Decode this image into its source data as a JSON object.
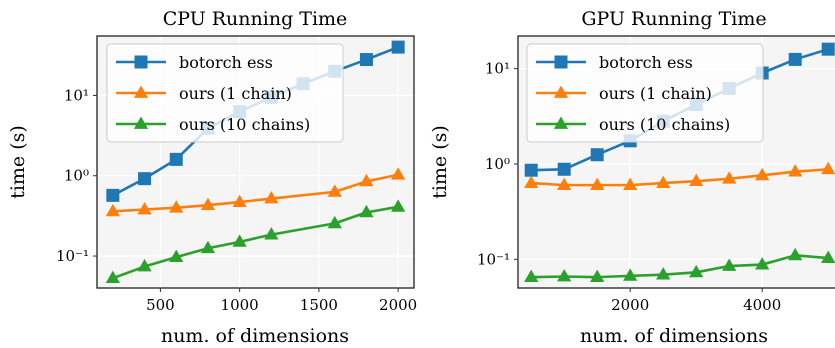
{
  "chart_data": [
    {
      "type": "line",
      "title": "CPU Running Time",
      "xlabel": "num. of dimensions",
      "ylabel": "time (s)",
      "yscale": "log",
      "xlim": [
        100,
        2100
      ],
      "ylim": [
        0.04,
        55
      ],
      "xticks": [
        500,
        1000,
        1500,
        2000
      ],
      "xtick_labels": [
        "500",
        "1000",
        "1500",
        "2000"
      ],
      "yticks": [
        0.1,
        1,
        10
      ],
      "ytick_labels": [
        "10⁻¹",
        "10⁰",
        "10¹"
      ],
      "grid": true,
      "legend_position": "upper-left",
      "series": [
        {
          "name": "botorch ess",
          "color": "#1f77b4",
          "marker": "square",
          "x": [
            200,
            400,
            600,
            800,
            1000,
            1200,
            1400,
            1600,
            1800,
            2000
          ],
          "y": [
            0.57,
            0.92,
            1.6,
            3.9,
            6.3,
            9.5,
            14,
            20,
            28,
            40
          ]
        },
        {
          "name": "ours (1 chain)",
          "color": "#ff7f0e",
          "marker": "triangle",
          "x": [
            200,
            400,
            600,
            800,
            1000,
            1200,
            1600,
            1800,
            2000
          ],
          "y": [
            0.36,
            0.38,
            0.4,
            0.43,
            0.47,
            0.52,
            0.63,
            0.85,
            1.03
          ]
        },
        {
          "name": "ours (10 chains)",
          "color": "#2ca02c",
          "marker": "triangle",
          "x": [
            200,
            400,
            600,
            800,
            1000,
            1200,
            1600,
            1800,
            2000
          ],
          "y": [
            0.053,
            0.074,
            0.097,
            0.125,
            0.15,
            0.185,
            0.255,
            0.35,
            0.41
          ]
        }
      ]
    },
    {
      "type": "line",
      "title": "GPU Running Time",
      "xlabel": "num. of dimensions",
      "ylabel": "time (s)",
      "yscale": "log",
      "xlim": [
        300,
        5300
      ],
      "ylim": [
        0.05,
        22
      ],
      "xticks": [
        2000,
        4000
      ],
      "xtick_labels": [
        "2000",
        "4000"
      ],
      "yticks": [
        0.1,
        1,
        10
      ],
      "ytick_labels": [
        "10⁻¹",
        "10⁰",
        "10¹"
      ],
      "grid": true,
      "legend_position": "upper-left",
      "series": [
        {
          "name": "botorch ess",
          "color": "#1f77b4",
          "marker": "square",
          "x": [
            500,
            1000,
            1500,
            2000,
            2500,
            3000,
            3500,
            4000,
            4500,
            5000
          ],
          "y": [
            0.86,
            0.88,
            1.25,
            1.75,
            2.8,
            4.2,
            6.2,
            9.0,
            12.5,
            16
          ]
        },
        {
          "name": "ours (1 chain)",
          "color": "#ff7f0e",
          "marker": "triangle",
          "x": [
            500,
            1000,
            1500,
            2000,
            2500,
            3000,
            3500,
            4000,
            4500,
            5000
          ],
          "y": [
            0.63,
            0.6,
            0.6,
            0.6,
            0.63,
            0.66,
            0.7,
            0.76,
            0.83,
            0.88
          ]
        },
        {
          "name": "ours (10 chains)",
          "color": "#2ca02c",
          "marker": "triangle",
          "x": [
            500,
            1000,
            1500,
            2000,
            2500,
            3000,
            3500,
            4000,
            4500,
            5000
          ],
          "y": [
            0.065,
            0.066,
            0.065,
            0.067,
            0.069,
            0.073,
            0.085,
            0.088,
            0.11,
            0.103
          ]
        }
      ]
    }
  ]
}
